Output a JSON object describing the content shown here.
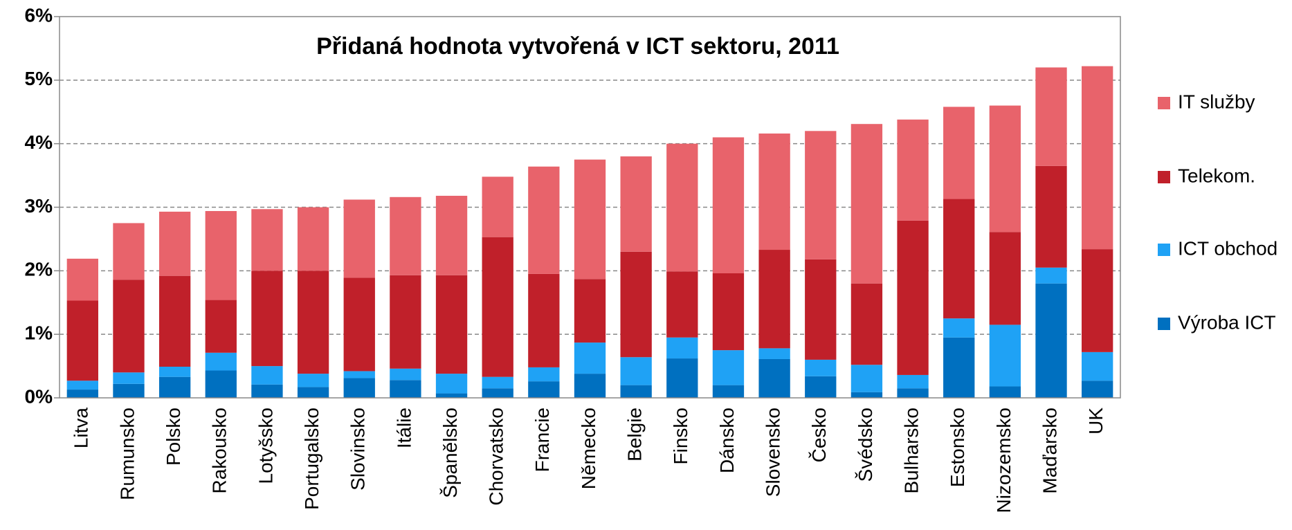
{
  "chart_data": {
    "type": "stacked_bar",
    "title": "Přidaná hodnota vytvořená v ICT sektoru, 2011",
    "categories": [
      "Litva",
      "Rumunsko",
      "Polsko",
      "Rakousko",
      "Lotyšsko",
      "Portugalsko",
      "Slovinsko",
      "Itálie",
      "Španělsko",
      "Chorvatsko",
      "Francie",
      "Německo",
      "Belgie",
      "Finsko",
      "Dánsko",
      "Slovensko",
      "Česko",
      "Švédsko",
      "Bulharsko",
      "Estonsko",
      "Nizozemsko",
      "Maďarsko",
      "UK"
    ],
    "series": [
      {
        "name": "Výroba ICT",
        "color": "#0070c0",
        "values": [
          0.13,
          0.22,
          0.33,
          0.43,
          0.21,
          0.17,
          0.31,
          0.28,
          0.07,
          0.15,
          0.26,
          0.38,
          0.2,
          0.62,
          0.2,
          0.61,
          0.34,
          0.09,
          0.15,
          0.95,
          0.18,
          1.8,
          0.27
        ]
      },
      {
        "name": "ICT obchod",
        "color": "#1fa2f5",
        "values": [
          0.14,
          0.18,
          0.16,
          0.28,
          0.29,
          0.21,
          0.11,
          0.18,
          0.31,
          0.18,
          0.22,
          0.49,
          0.44,
          0.33,
          0.55,
          0.17,
          0.26,
          0.43,
          0.21,
          0.3,
          0.97,
          0.25,
          0.45
        ]
      },
      {
        "name": "Telekom.",
        "color": "#c0202a",
        "values": [
          1.26,
          1.46,
          1.43,
          0.83,
          1.5,
          1.62,
          1.47,
          1.47,
          1.55,
          2.2,
          1.47,
          1.0,
          1.66,
          1.04,
          1.21,
          1.55,
          1.58,
          1.28,
          2.43,
          1.88,
          1.46,
          1.6,
          1.62
        ]
      },
      {
        "name": "IT služby",
        "color": "#e8636b",
        "values": [
          0.66,
          0.89,
          1.01,
          1.4,
          0.97,
          1.0,
          1.23,
          1.23,
          1.25,
          0.95,
          1.69,
          1.88,
          1.5,
          2.01,
          2.14,
          1.83,
          2.02,
          2.51,
          1.59,
          1.45,
          1.99,
          1.55,
          2.88
        ]
      }
    ],
    "ylim": [
      0,
      6
    ],
    "yticks": [
      {
        "value": 0,
        "label": "0%"
      },
      {
        "value": 1,
        "label": "1%"
      },
      {
        "value": 2,
        "label": "2%"
      },
      {
        "value": 3,
        "label": "3%"
      },
      {
        "value": 4,
        "label": "4%"
      },
      {
        "value": 5,
        "label": "5%"
      },
      {
        "value": 6,
        "label": "6%"
      }
    ],
    "grid": true,
    "legend": "right"
  }
}
